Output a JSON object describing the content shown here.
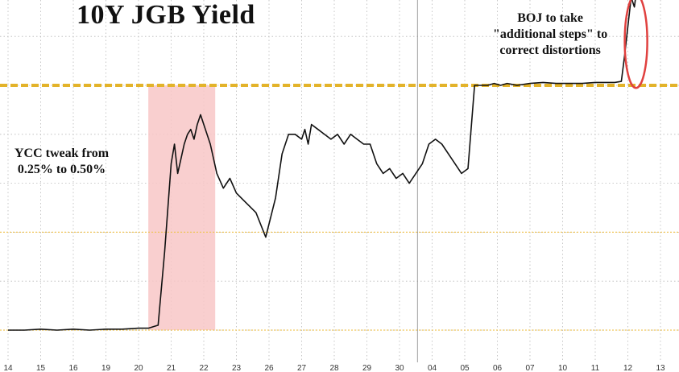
{
  "chart_data": {
    "type": "line",
    "title": "10Y JGB Yield",
    "x_tick_labels": [
      "14",
      "15",
      "16",
      "19",
      "20",
      "21",
      "22",
      "23",
      "26",
      "27",
      "28",
      "29",
      "30",
      "04",
      "05",
      "06",
      "07",
      "10",
      "11",
      "12",
      "13"
    ],
    "reference_lines": [
      0.5,
      0.25
    ],
    "ylim": [
      0.2,
      0.62
    ],
    "series": [
      {
        "x": [
          0.0,
          0.5,
          1.0,
          1.5,
          2.0,
          2.5,
          3.0,
          3.5,
          4.0,
          4.3,
          4.6,
          4.8,
          5.0,
          5.1,
          5.2,
          5.3,
          5.4,
          5.5,
          5.6,
          5.7,
          5.8,
          5.9,
          6.0,
          6.2,
          6.4,
          6.6,
          6.8,
          7.0,
          7.3,
          7.6,
          7.9,
          8.2,
          8.4,
          8.6,
          8.8,
          9.0,
          9.1,
          9.2,
          9.3,
          9.5,
          9.7,
          9.9,
          10.1,
          10.3,
          10.5,
          10.7,
          10.9,
          11.1,
          11.3,
          11.5,
          11.7,
          11.9,
          12.1,
          12.3,
          12.5,
          12.7,
          12.9,
          13.1,
          13.3,
          13.6,
          13.9,
          14.1,
          14.3,
          14.5,
          14.7,
          14.9,
          15.1,
          15.3,
          15.6,
          16.0,
          16.4,
          16.8,
          17.2,
          17.6,
          18.0,
          18.4,
          18.6,
          18.8,
          18.9,
          19.0,
          19.1,
          19.2,
          19.3,
          19.4
        ],
        "y": [
          0.25,
          0.25,
          0.251,
          0.25,
          0.251,
          0.25,
          0.251,
          0.251,
          0.252,
          0.252,
          0.255,
          0.33,
          0.42,
          0.44,
          0.41,
          0.425,
          0.44,
          0.45,
          0.455,
          0.445,
          0.46,
          0.47,
          0.46,
          0.44,
          0.41,
          0.395,
          0.405,
          0.39,
          0.38,
          0.37,
          0.345,
          0.385,
          0.43,
          0.45,
          0.45,
          0.445,
          0.455,
          0.44,
          0.46,
          0.455,
          0.45,
          0.445,
          0.45,
          0.44,
          0.45,
          0.445,
          0.44,
          0.44,
          0.42,
          0.41,
          0.415,
          0.405,
          0.41,
          0.4,
          0.41,
          0.42,
          0.44,
          0.445,
          0.44,
          0.425,
          0.41,
          0.415,
          0.5,
          0.5,
          0.5,
          0.502,
          0.5,
          0.502,
          0.5,
          0.502,
          0.503,
          0.502,
          0.502,
          0.502,
          0.503,
          0.503,
          0.503,
          0.504,
          0.53,
          0.56,
          0.59,
          0.58,
          0.605,
          0.595
        ]
      }
    ],
    "annotations": [
      {
        "id": "ycc",
        "lines": [
          "YCC tweak from",
          "0.25% to 0.50%"
        ]
      },
      {
        "id": "boj",
        "lines": [
          "BOJ to take",
          "\"additional steps\" to",
          "correct distortions"
        ]
      }
    ],
    "colors": {
      "line": "#111111",
      "band": "#f8c7c7",
      "ref_dashed": "#e3b32a",
      "ref_dotted": "#f0c65a",
      "grid": "#b9b9b9",
      "circle": "#e0413f"
    }
  }
}
